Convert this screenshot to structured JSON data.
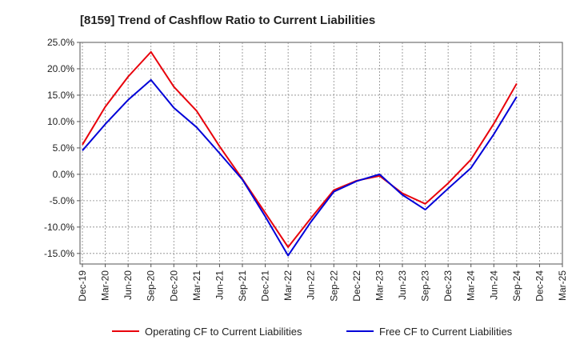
{
  "chart_data": {
    "type": "line",
    "title": "[8159]  Trend of Cashflow Ratio to Current Liabilities",
    "xlabel": "",
    "ylabel": "",
    "categories": [
      "Dec-19",
      "Mar-20",
      "Jun-20",
      "Sep-20",
      "Dec-20",
      "Mar-21",
      "Jun-21",
      "Sep-21",
      "Dec-21",
      "Mar-22",
      "Jun-22",
      "Sep-22",
      "Dec-22",
      "Mar-23",
      "Jun-23",
      "Sep-23",
      "Dec-23",
      "Mar-24",
      "Jun-24",
      "Sep-24",
      "Dec-24",
      "Mar-25"
    ],
    "ylim": [
      -17.0,
      25.0
    ],
    "yticks": [
      25.0,
      20.0,
      15.0,
      10.0,
      5.0,
      0.0,
      -5.0,
      -10.0,
      -15.0
    ],
    "ytick_labels": [
      "25.0%",
      "20.0%",
      "15.0%",
      "10.0%",
      "5.0%",
      "0.0%",
      "-5.0%",
      "-10.0%",
      "-15.0%"
    ],
    "grid": true,
    "legend_position": "bottom",
    "series": [
      {
        "name": "Operating CF to Current Liabilities",
        "color": "#e8000b",
        "values": [
          5.6,
          12.8,
          18.5,
          23.2,
          16.6,
          12.0,
          5.3,
          -0.9,
          -7.3,
          -13.8,
          -8.3,
          -3.0,
          -1.2,
          -0.3,
          -3.6,
          -5.6,
          -1.7,
          2.8,
          9.6,
          17.2,
          null,
          null
        ]
      },
      {
        "name": "Free CF to Current Liabilities",
        "color": "#0000d8",
        "values": [
          4.5,
          9.5,
          14.1,
          17.9,
          12.6,
          8.9,
          4.0,
          -1.0,
          -8.0,
          -15.4,
          -9.0,
          -3.3,
          -1.3,
          0.0,
          -3.9,
          -6.7,
          -2.7,
          1.2,
          7.6,
          14.7,
          null,
          null
        ]
      }
    ]
  }
}
